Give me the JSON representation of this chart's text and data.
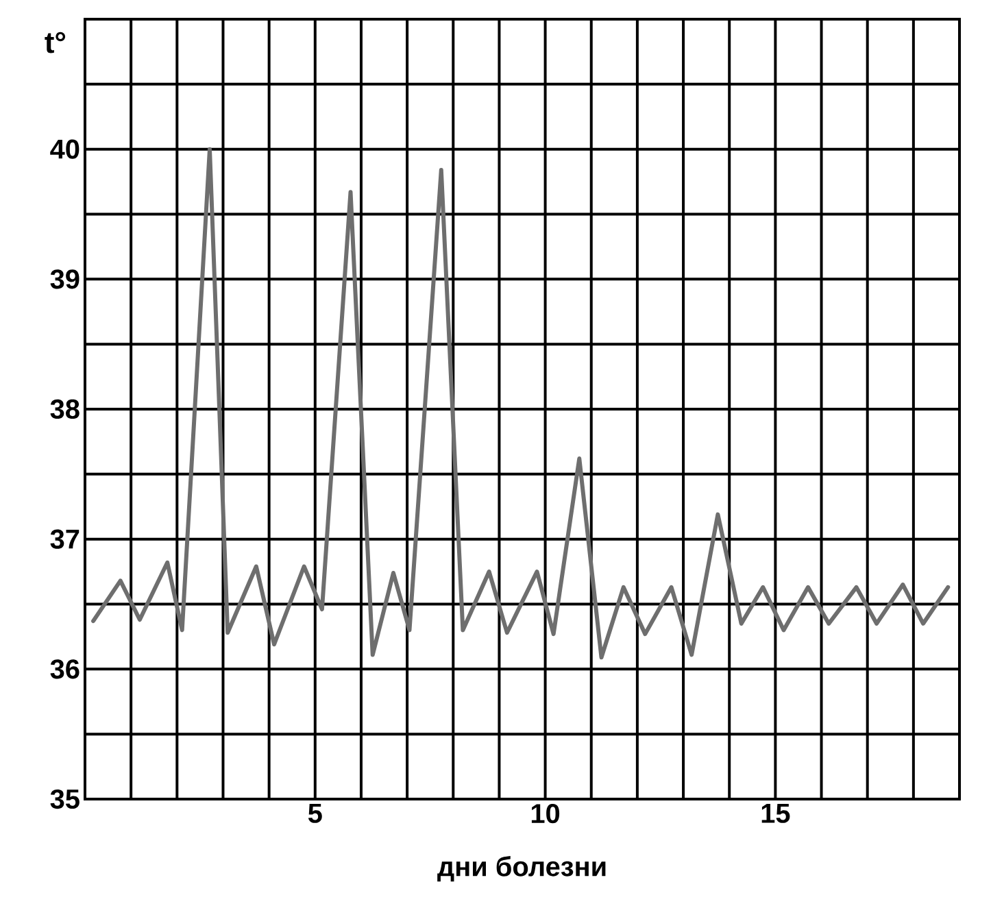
{
  "chart_data": {
    "type": "line",
    "xlabel": "дни болезни",
    "ylabel": "t°",
    "xlim": [
      0,
      19
    ],
    "ylim": [
      35,
      41
    ],
    "xticks": [
      {
        "value": 0,
        "label": null
      },
      {
        "value": 1,
        "label": null
      },
      {
        "value": 2,
        "label": null
      },
      {
        "value": 3,
        "label": null
      },
      {
        "value": 4,
        "label": null
      },
      5,
      {
        "value": 6,
        "label": null
      },
      {
        "value": 7,
        "label": null
      },
      {
        "value": 8,
        "label": null
      },
      {
        "value": 9,
        "label": null
      },
      10,
      {
        "value": 11,
        "label": null
      },
      {
        "value": 12,
        "label": null
      },
      {
        "value": 13,
        "label": null
      },
      {
        "value": 14,
        "label": null
      },
      15,
      {
        "value": 16,
        "label": null
      },
      {
        "value": 17,
        "label": null
      },
      {
        "value": 18,
        "label": null
      },
      {
        "value": 19,
        "label": null
      }
    ],
    "yticks": [
      35,
      {
        "value": 35.5,
        "label": null
      },
      36,
      {
        "value": 36.5,
        "label": null
      },
      37,
      {
        "value": 37.5,
        "label": null
      },
      38,
      {
        "value": 38.5,
        "label": null
      },
      39,
      {
        "value": 39.5,
        "label": null
      },
      40,
      {
        "value": 40.5,
        "label": null
      },
      {
        "value": 41,
        "label": null
      }
    ],
    "grid": true,
    "series": [
      {
        "color": "#6e6e6e",
        "x": [
          0.18,
          0.77,
          1.19,
          1.79,
          2.11,
          2.71,
          3.1,
          3.72,
          4.11,
          4.76,
          5.15,
          5.77,
          6.25,
          6.7,
          7.05,
          7.74,
          8.21,
          8.78,
          9.17,
          9.82,
          10.18,
          10.74,
          11.22,
          11.7,
          12.17,
          12.74,
          13.18,
          13.75,
          14.26,
          14.73,
          15.18,
          15.71,
          16.16,
          16.76,
          17.2,
          17.77,
          18.21,
          18.75
        ],
        "values": [
          36.37,
          36.68,
          36.38,
          36.82,
          36.3,
          40.0,
          36.28,
          36.79,
          36.19,
          36.79,
          36.46,
          39.67,
          36.11,
          36.74,
          36.3,
          39.84,
          36.3,
          36.75,
          36.28,
          36.75,
          36.27,
          37.62,
          36.09,
          36.63,
          36.27,
          36.63,
          36.11,
          37.19,
          36.35,
          36.63,
          36.3,
          36.63,
          36.35,
          36.63,
          36.35,
          36.65,
          36.35,
          36.63
        ]
      }
    ]
  }
}
